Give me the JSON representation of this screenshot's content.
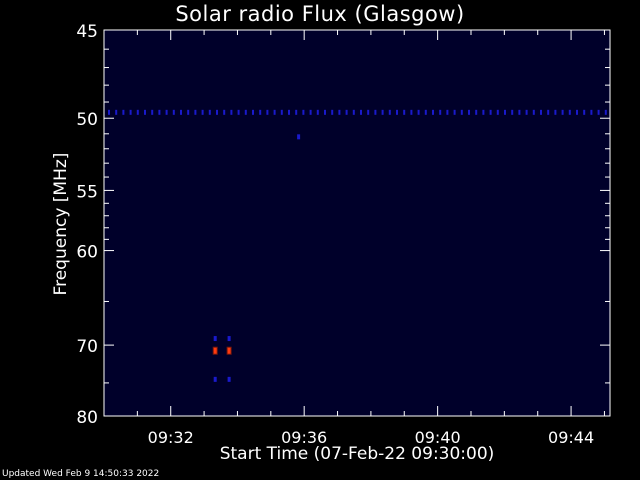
{
  "chart_data": {
    "type": "heatmap",
    "title": "Solar radio Flux (Glasgow)",
    "xlabel": "Start Time (07-Feb-22 09:30:00)",
    "ylabel": "Frequency [MHz]",
    "x_range_minutes": [
      "09:30:00",
      "09:45:10"
    ],
    "xticks": [
      "09:32",
      "09:36",
      "09:40",
      "09:44"
    ],
    "y_range_mhz": [
      45,
      80
    ],
    "yticks": [
      45,
      50,
      55,
      60,
      70,
      80
    ],
    "y_scale": "reciprocal",
    "grid": false,
    "features": [
      {
        "kind": "persistent-line",
        "freq_mhz": 49.6,
        "time_start": "09:30:00",
        "time_end": "09:45:10",
        "intensity": "low"
      },
      {
        "kind": "spot",
        "time": "09:35:50",
        "freq_mhz": 51.2,
        "intensity": "low"
      },
      {
        "kind": "burst",
        "time": "09:33:20",
        "freq_mhz": 69.2,
        "intensity": "low"
      },
      {
        "kind": "burst",
        "time": "09:33:45",
        "freq_mhz": 69.2,
        "intensity": "low"
      },
      {
        "kind": "burst",
        "time": "09:33:20",
        "freq_mhz": 70.7,
        "intensity": "high"
      },
      {
        "kind": "burst",
        "time": "09:33:45",
        "freq_mhz": 70.7,
        "intensity": "high"
      },
      {
        "kind": "burst",
        "time": "09:33:20",
        "freq_mhz": 74.5,
        "intensity": "low"
      },
      {
        "kind": "burst",
        "time": "09:33:45",
        "freq_mhz": 74.5,
        "intensity": "low"
      }
    ],
    "colors": {
      "background": "#000000",
      "plot_background": "#00002a",
      "low": "#1a1acc",
      "high": "#ff3a10"
    }
  },
  "footer": {
    "updated": "Updated Wed Feb  9 14:50:33 2022"
  }
}
